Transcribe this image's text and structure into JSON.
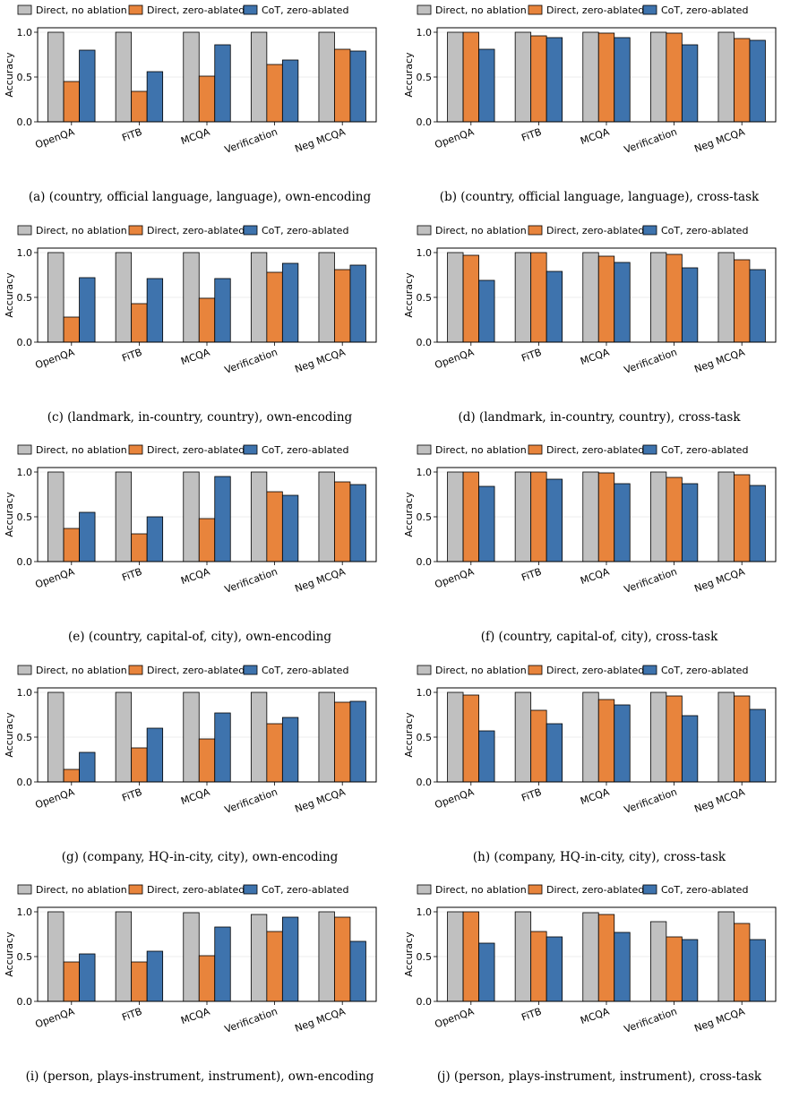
{
  "legend": {
    "series": [
      "Direct, no ablation",
      "Direct, zero-ablated",
      "CoT, zero-ablated"
    ],
    "colors": [
      "#c0c0c0",
      "#e8843c",
      "#3e73ad"
    ]
  },
  "chart_data": [
    {
      "type": "bar",
      "caption": "(a) (country, official language, language), own-encoding",
      "ylabel": "Accuracy",
      "ylim": [
        0,
        1.05
      ],
      "yticks": [
        "0.0",
        "0.5",
        "1.0"
      ],
      "categories": [
        "OpenQA",
        "FiTB",
        "MCQA",
        "Verification",
        "Neg MCQA"
      ],
      "series": [
        {
          "name": "Direct, no ablation",
          "values": [
            1.0,
            1.0,
            1.0,
            1.0,
            1.0
          ]
        },
        {
          "name": "Direct, zero-ablated",
          "values": [
            0.45,
            0.34,
            0.51,
            0.64,
            0.81
          ]
        },
        {
          "name": "CoT, zero-ablated",
          "values": [
            0.8,
            0.56,
            0.86,
            0.69,
            0.79
          ]
        }
      ]
    },
    {
      "type": "bar",
      "caption": "(b) (country, official language, language), cross-task",
      "ylabel": "Accuracy",
      "ylim": [
        0,
        1.05
      ],
      "yticks": [
        "0.0",
        "0.5",
        "1.0"
      ],
      "categories": [
        "OpenQA",
        "FiTB",
        "MCQA",
        "Verification",
        "Neg MCQA"
      ],
      "series": [
        {
          "name": "Direct, no ablation",
          "values": [
            1.0,
            1.0,
            1.0,
            1.0,
            1.0
          ]
        },
        {
          "name": "Direct, zero-ablated",
          "values": [
            1.0,
            0.96,
            0.99,
            0.99,
            0.93
          ]
        },
        {
          "name": "CoT, zero-ablated",
          "values": [
            0.81,
            0.94,
            0.94,
            0.86,
            0.91
          ]
        }
      ]
    },
    {
      "type": "bar",
      "caption": "(c) (landmark, in-country, country), own-encoding",
      "ylabel": "Accuracy",
      "ylim": [
        0,
        1.05
      ],
      "yticks": [
        "0.0",
        "0.5",
        "1.0"
      ],
      "categories": [
        "OpenQA",
        "FiTB",
        "MCQA",
        "Verification",
        "Neg MCQA"
      ],
      "series": [
        {
          "name": "Direct, no ablation",
          "values": [
            1.0,
            1.0,
            1.0,
            1.0,
            1.0
          ]
        },
        {
          "name": "Direct, zero-ablated",
          "values": [
            0.28,
            0.43,
            0.49,
            0.78,
            0.81
          ]
        },
        {
          "name": "CoT, zero-ablated",
          "values": [
            0.72,
            0.71,
            0.71,
            0.88,
            0.86
          ]
        }
      ]
    },
    {
      "type": "bar",
      "caption": "(d) (landmark, in-country, country), cross-task",
      "ylabel": "Accuracy",
      "ylim": [
        0,
        1.05
      ],
      "yticks": [
        "0.0",
        "0.5",
        "1.0"
      ],
      "categories": [
        "OpenQA",
        "FiTB",
        "MCQA",
        "Verification",
        "Neg MCQA"
      ],
      "series": [
        {
          "name": "Direct, no ablation",
          "values": [
            1.0,
            1.0,
            1.0,
            1.0,
            1.0
          ]
        },
        {
          "name": "Direct, zero-ablated",
          "values": [
            0.97,
            1.0,
            0.96,
            0.98,
            0.92
          ]
        },
        {
          "name": "CoT, zero-ablated",
          "values": [
            0.69,
            0.79,
            0.89,
            0.83,
            0.81
          ]
        }
      ]
    },
    {
      "type": "bar",
      "caption": "(e) (country, capital-of, city), own-encoding",
      "ylabel": "Accuracy",
      "ylim": [
        0,
        1.05
      ],
      "yticks": [
        "0.0",
        "0.5",
        "1.0"
      ],
      "categories": [
        "OpenQA",
        "FiTB",
        "MCQA",
        "Verification",
        "Neg MCQA"
      ],
      "series": [
        {
          "name": "Direct, no ablation",
          "values": [
            1.0,
            1.0,
            1.0,
            1.0,
            1.0
          ]
        },
        {
          "name": "Direct, zero-ablated",
          "values": [
            0.37,
            0.31,
            0.48,
            0.78,
            0.89
          ]
        },
        {
          "name": "CoT, zero-ablated",
          "values": [
            0.55,
            0.5,
            0.95,
            0.74,
            0.86
          ]
        }
      ]
    },
    {
      "type": "bar",
      "caption": "(f) (country, capital-of, city), cross-task",
      "ylabel": "Accuracy",
      "ylim": [
        0,
        1.05
      ],
      "yticks": [
        "0.0",
        "0.5",
        "1.0"
      ],
      "categories": [
        "OpenQA",
        "FiTB",
        "MCQA",
        "Verification",
        "Neg MCQA"
      ],
      "series": [
        {
          "name": "Direct, no ablation",
          "values": [
            1.0,
            1.0,
            1.0,
            1.0,
            1.0
          ]
        },
        {
          "name": "Direct, zero-ablated",
          "values": [
            1.0,
            1.0,
            0.99,
            0.94,
            0.97
          ]
        },
        {
          "name": "CoT, zero-ablated",
          "values": [
            0.84,
            0.92,
            0.87,
            0.87,
            0.85
          ]
        }
      ]
    },
    {
      "type": "bar",
      "caption": "(g) (company, HQ-in-city, city), own-encoding",
      "ylabel": "Accuracy",
      "ylim": [
        0,
        1.05
      ],
      "yticks": [
        "0.0",
        "0.5",
        "1.0"
      ],
      "categories": [
        "OpenQA",
        "FiTB",
        "MCQA",
        "Verification",
        "Neg MCQA"
      ],
      "series": [
        {
          "name": "Direct, no ablation",
          "values": [
            1.0,
            1.0,
            1.0,
            1.0,
            1.0
          ]
        },
        {
          "name": "Direct, zero-ablated",
          "values": [
            0.14,
            0.38,
            0.48,
            0.65,
            0.89
          ]
        },
        {
          "name": "CoT, zero-ablated",
          "values": [
            0.33,
            0.6,
            0.77,
            0.72,
            0.9
          ]
        }
      ]
    },
    {
      "type": "bar",
      "caption": "(h) (company, HQ-in-city, city), cross-task",
      "ylabel": "Accuracy",
      "ylim": [
        0,
        1.05
      ],
      "yticks": [
        "0.0",
        "0.5",
        "1.0"
      ],
      "categories": [
        "OpenQA",
        "FiTB",
        "MCQA",
        "Verification",
        "Neg MCQA"
      ],
      "series": [
        {
          "name": "Direct, no ablation",
          "values": [
            1.0,
            1.0,
            1.0,
            1.0,
            1.0
          ]
        },
        {
          "name": "Direct, zero-ablated",
          "values": [
            0.97,
            0.8,
            0.92,
            0.96,
            0.96
          ]
        },
        {
          "name": "CoT, zero-ablated",
          "values": [
            0.57,
            0.65,
            0.86,
            0.74,
            0.81
          ]
        }
      ]
    },
    {
      "type": "bar",
      "caption": "(i) (person, plays-instrument, instrument), own-encoding",
      "ylabel": "Accuracy",
      "ylim": [
        0,
        1.05
      ],
      "yticks": [
        "0.0",
        "0.5",
        "1.0"
      ],
      "categories": [
        "OpenQA",
        "FiTB",
        "MCQA",
        "Verification",
        "Neg MCQA"
      ],
      "series": [
        {
          "name": "Direct, no ablation",
          "values": [
            1.0,
            1.0,
            0.99,
            0.97,
            1.0
          ]
        },
        {
          "name": "Direct, zero-ablated",
          "values": [
            0.44,
            0.44,
            0.51,
            0.78,
            0.94
          ]
        },
        {
          "name": "CoT, zero-ablated",
          "values": [
            0.53,
            0.56,
            0.83,
            0.94,
            0.67
          ]
        }
      ]
    },
    {
      "type": "bar",
      "caption": "(j) (person, plays-instrument, instrument), cross-task",
      "ylabel": "Accuracy",
      "ylim": [
        0,
        1.05
      ],
      "yticks": [
        "0.0",
        "0.5",
        "1.0"
      ],
      "categories": [
        "OpenQA",
        "FiTB",
        "MCQA",
        "Verification",
        "Neg MCQA"
      ],
      "series": [
        {
          "name": "Direct, no ablation",
          "values": [
            1.0,
            1.0,
            0.99,
            0.89,
            1.0
          ]
        },
        {
          "name": "Direct, zero-ablated",
          "values": [
            1.0,
            0.78,
            0.97,
            0.72,
            0.87
          ]
        },
        {
          "name": "CoT, zero-ablated",
          "values": [
            0.65,
            0.72,
            0.77,
            0.69,
            0.69
          ]
        }
      ]
    }
  ]
}
